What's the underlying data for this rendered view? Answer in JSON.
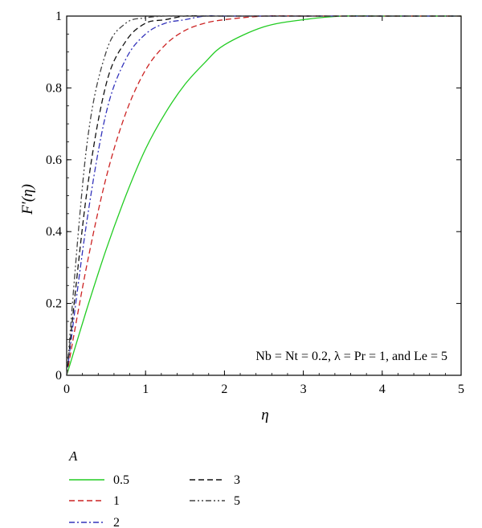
{
  "chart_data": {
    "type": "line",
    "title": "",
    "xlabel": "η",
    "ylabel": "F′(η)",
    "xlim": [
      0,
      5
    ],
    "ylim": [
      0,
      1
    ],
    "x_ticks": [
      "0",
      "1",
      "2",
      "3",
      "4",
      "5"
    ],
    "y_ticks": [
      "0",
      "0.2",
      "0.4",
      "0.6",
      "0.8",
      "1"
    ],
    "x_tick_values": [
      0,
      1,
      2,
      3,
      4,
      5
    ],
    "y_tick_values": [
      0,
      0.2,
      0.4,
      0.6,
      0.8,
      1
    ],
    "grid": false,
    "legend_title": "A",
    "legend_position": "below",
    "annotation": "Nb = Nt = 0.2, λ = Pr = 1, and Le = 5",
    "x": [
      0,
      0.25,
      0.5,
      0.75,
      1.0,
      1.25,
      1.5,
      1.75,
      2.0,
      2.5,
      3.0,
      3.5,
      4.0,
      5.0
    ],
    "series": [
      {
        "name": "0.5",
        "color": "#22cc22",
        "dash": "solid",
        "values": [
          0,
          0.18,
          0.35,
          0.5,
          0.63,
          0.73,
          0.81,
          0.87,
          0.92,
          0.97,
          0.99,
          1.0,
          1.0,
          1.0
        ]
      },
      {
        "name": "1",
        "color": "#cc2222",
        "dash": "dashed",
        "values": [
          0,
          0.3,
          0.55,
          0.73,
          0.85,
          0.92,
          0.96,
          0.98,
          0.99,
          1.0,
          1.0,
          1.0,
          1.0,
          1.0
        ]
      },
      {
        "name": "2",
        "color": "#3333bb",
        "dash": "dashdot",
        "values": [
          0,
          0.42,
          0.73,
          0.88,
          0.95,
          0.98,
          0.99,
          1.0,
          1.0,
          1.0,
          1.0,
          1.0,
          1.0,
          1.0
        ]
      },
      {
        "name": "3",
        "color": "#111111",
        "dash": "dashed",
        "values": [
          0,
          0.5,
          0.81,
          0.93,
          0.98,
          0.99,
          1.0,
          1.0,
          1.0,
          1.0,
          1.0,
          1.0,
          1.0,
          1.0
        ]
      },
      {
        "name": "5",
        "color": "#444444",
        "dash": "dashdotdot",
        "values": [
          0,
          0.63,
          0.9,
          0.98,
          0.995,
          1.0,
          1.0,
          1.0,
          1.0,
          1.0,
          1.0,
          1.0,
          1.0,
          1.0
        ]
      }
    ]
  }
}
